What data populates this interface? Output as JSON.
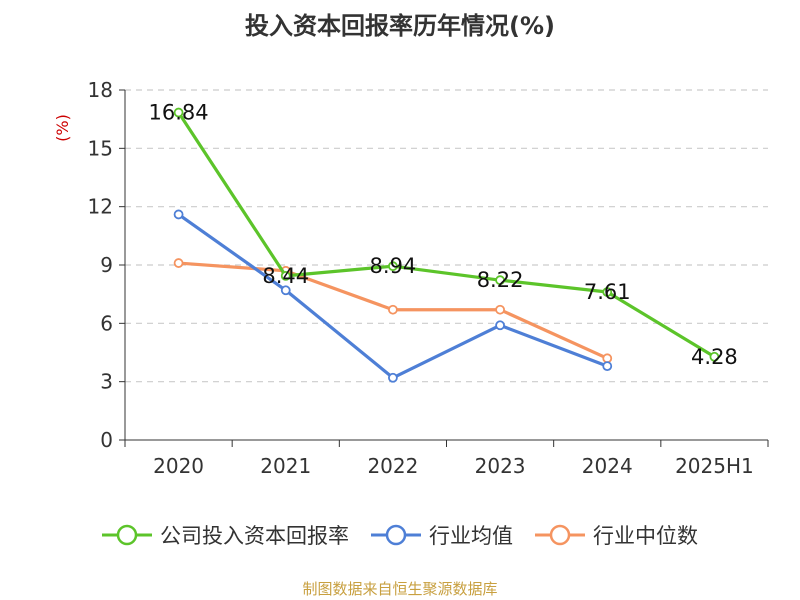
{
  "chart_data": {
    "type": "line",
    "title": "投入资本回报率历年情况(%)",
    "ylabel": "(%)",
    "categories": [
      "2020",
      "2021",
      "2022",
      "2023",
      "2024",
      "2025H1"
    ],
    "ylim": [
      0,
      18
    ],
    "yticks": [
      0,
      3,
      6,
      9,
      12,
      15,
      18
    ],
    "grid": true,
    "legend_position": "bottom",
    "series": [
      {
        "name": "公司投入资本回报率",
        "color": "#5cc42a",
        "values": [
          16.84,
          8.44,
          8.94,
          8.22,
          7.61,
          4.28
        ],
        "labels": [
          "16.84",
          "8.44",
          "8.94",
          "8.22",
          "7.61",
          "4.28"
        ]
      },
      {
        "name": "行业均值",
        "color": "#4e7fd6",
        "values": [
          11.6,
          7.7,
          3.2,
          5.9,
          3.8,
          null
        ]
      },
      {
        "name": "行业中位数",
        "color": "#f59460",
        "values": [
          9.1,
          8.7,
          6.7,
          6.7,
          4.2,
          null
        ]
      }
    ]
  },
  "colors": {
    "ylabel": "#cc0000",
    "source": "#c8a040",
    "text": "#333333",
    "axis": "#333333",
    "grid": "#cccccc"
  },
  "source_note": "制图数据来自恒生聚源数据库"
}
